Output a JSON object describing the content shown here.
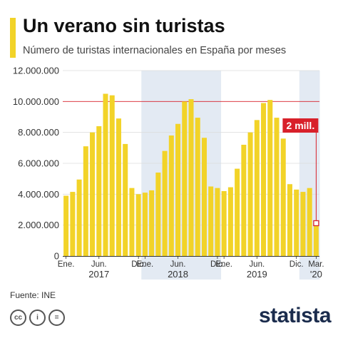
{
  "header": {
    "title": "Un verano sin turistas",
    "subtitle": "Número de turistas internacionales en España por meses"
  },
  "chart_data": {
    "type": "bar",
    "title": "Un verano sin turistas",
    "subtitle": "Número de turistas internacionales en España por meses",
    "ylim": [
      0,
      12000000
    ],
    "yticks": [
      "0",
      "2.000.000",
      "4.000.000",
      "6.000.000",
      "8.000.000",
      "10.000.000",
      "12.000.000"
    ],
    "ytick_values": [
      0,
      2000000,
      4000000,
      6000000,
      8000000,
      10000000,
      12000000
    ],
    "grid": true,
    "reference_line": 10000000,
    "month_labels": [
      {
        "text": "Ene.",
        "index": 0
      },
      {
        "text": "Jun.",
        "index": 5
      },
      {
        "text": "Dic.",
        "index": 11
      },
      {
        "text": "Ene.",
        "index": 12
      },
      {
        "text": "Jun.",
        "index": 17
      },
      {
        "text": "Dic.",
        "index": 23
      },
      {
        "text": "Ene.",
        "index": 24
      },
      {
        "text": "Jun.",
        "index": 29
      },
      {
        "text": "Dic.",
        "index": 35
      },
      {
        "text": "Mar.",
        "index": 38
      }
    ],
    "year_labels": [
      {
        "text": "2017",
        "index": 5
      },
      {
        "text": "2018",
        "index": 17
      },
      {
        "text": "2019",
        "index": 29
      },
      {
        "text": "'20",
        "index": 38
      }
    ],
    "shaded_periods": [
      [
        12,
        23
      ],
      [
        36,
        38
      ]
    ],
    "values": [
      3900000,
      4150000,
      4950000,
      7100000,
      8000000,
      8400000,
      10500000,
      10400000,
      8900000,
      7250000,
      4400000,
      4000000,
      4100000,
      4250000,
      5400000,
      6800000,
      7800000,
      8550000,
      10000000,
      10150000,
      8950000,
      7650000,
      4500000,
      4400000,
      4200000,
      4450000,
      5650000,
      7200000,
      8000000,
      8800000,
      9900000,
      10100000,
      8950000,
      7600000,
      4650000,
      4300000,
      4150000,
      4400000,
      2100000
    ],
    "annotation": {
      "text": "2 mill.",
      "index": 38,
      "value": 2100000
    }
  },
  "footer": {
    "source": "Fuente: INE",
    "logo": "statista",
    "license_icons": [
      "cc-icon",
      "by-icon",
      "nd-icon"
    ],
    "license_glyphs": [
      "cc",
      "i",
      "="
    ]
  },
  "colors": {
    "bar": "#f2d328",
    "shade": "#e3eaf3",
    "annotation": "#d8202a",
    "axis_text": "#333333",
    "grid": "#dddddd"
  }
}
